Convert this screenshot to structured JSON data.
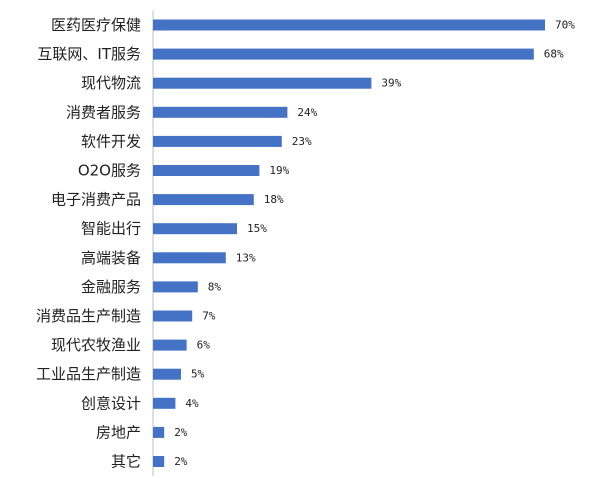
{
  "chart_data": {
    "type": "bar",
    "orientation": "horizontal",
    "categories": [
      "医药医疗保健",
      "互联网、IT服务",
      "现代物流",
      "消费者服务",
      "软件开发",
      "O2O服务",
      "电子消费产品",
      "智能出行",
      "高端装备",
      "金融服务",
      "消费品生产制造",
      "现代农牧渔业",
      "工业品生产制造",
      "创意设计",
      "房地产",
      "其它"
    ],
    "values": [
      70,
      68,
      39,
      24,
      23,
      19,
      18,
      15,
      13,
      8,
      7,
      6,
      5,
      4,
      2,
      2
    ],
    "value_labels": [
      "70%",
      "68%",
      "39%",
      "24%",
      "23%",
      "19%",
      "18%",
      "15%",
      "13%",
      "8%",
      "7%",
      "6%",
      "5%",
      "4%",
      "2%",
      "2%"
    ],
    "unit": "%",
    "xlim": [
      0,
      75
    ],
    "grid": false,
    "legend": "none",
    "bar_color": "#4472c4",
    "title": "",
    "xlabel": "",
    "ylabel": ""
  }
}
